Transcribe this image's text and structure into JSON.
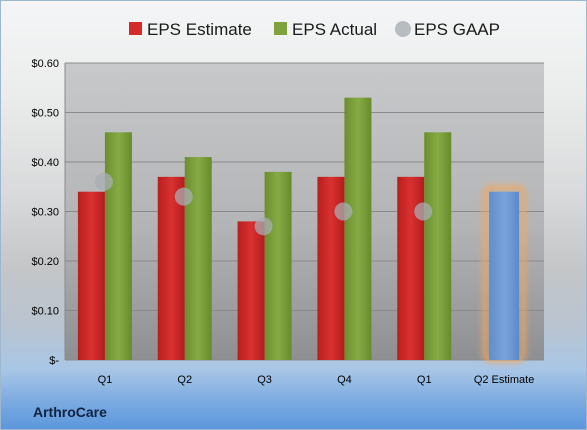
{
  "company": "ArthroCare",
  "chart_data": {
    "type": "bar",
    "categories": [
      "Q1",
      "Q2",
      "Q3",
      "Q4",
      "Q1",
      "Q2 Estimate"
    ],
    "series": [
      {
        "name": "EPS Estimate",
        "values": [
          0.34,
          0.37,
          0.28,
          0.37,
          0.37,
          null
        ],
        "color": "#d42a2a"
      },
      {
        "name": "EPS Actual",
        "values": [
          0.46,
          0.41,
          0.38,
          0.53,
          0.46,
          null
        ],
        "color": "#7ea33d"
      },
      {
        "name": "EPS GAAP",
        "type": "scatter",
        "values": [
          0.36,
          0.33,
          0.27,
          0.3,
          0.3,
          null
        ],
        "color": "#a9aeb4"
      }
    ],
    "estimate_bar": {
      "category": "Q2 Estimate",
      "value": 0.34,
      "color": "#6f9bd6",
      "glow": "#f0a860"
    },
    "yticks": [
      0,
      0.1,
      0.2,
      0.3,
      0.4,
      0.5,
      0.6
    ],
    "ytick_labels": [
      "$-",
      "$0.10",
      "$0.20",
      "$0.30",
      "$0.40",
      "$0.50",
      "$0.60"
    ],
    "ylim": [
      0,
      0.6
    ],
    "grid": true,
    "legend": "top"
  }
}
